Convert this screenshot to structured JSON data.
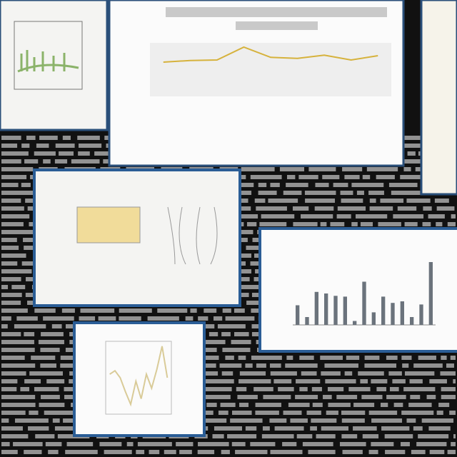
{
  "chart_data": [
    {
      "type": "line",
      "values": [
        0.64,
        0.67,
        0.68,
        0.92,
        0.73,
        0.71,
        0.77,
        0.68,
        0.76
      ],
      "ylim": [
        0,
        1
      ],
      "color": "#d6b23c"
    },
    {
      "type": "bar",
      "values": [
        0.25,
        0.1,
        0.42,
        0.4,
        0.37,
        0.36,
        0.05,
        0.55,
        0.16,
        0.36,
        0.28,
        0.3,
        0.1,
        0.26,
        0.8
      ],
      "ylim": [
        0,
        1
      ],
      "color": "#6b737c"
    },
    {
      "type": "line",
      "values": [
        0.55,
        0.6,
        0.5,
        0.3,
        0.12,
        0.45,
        0.2,
        0.55,
        0.35,
        0.62,
        0.95,
        0.5
      ],
      "ylim": [
        0,
        1
      ],
      "color": "#d9cb98"
    }
  ]
}
